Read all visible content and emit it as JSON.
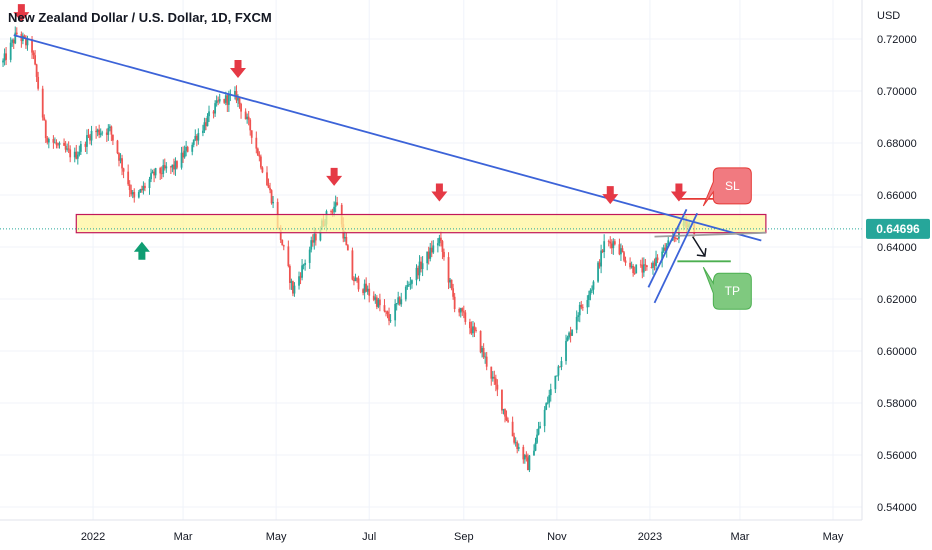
{
  "chart_data": {
    "type": "candlestick",
    "title": "New Zealand Dollar / U.S. Dollar, 1D, FXCM",
    "currency": "USD",
    "ylim": [
      0.535,
      0.735
    ],
    "y_ticks": [
      "0.72000",
      "0.70000",
      "0.68000",
      "0.66000",
      "0.64000",
      "0.62000",
      "0.60000",
      "0.58000",
      "0.56000",
      "0.54000"
    ],
    "x_ticks": [
      "2022",
      "Mar",
      "May",
      "Jul",
      "Sep",
      "Nov",
      "2023",
      "Mar",
      "May"
    ],
    "x_tick_dates": [
      "2022-01-01",
      "2022-03-01",
      "2022-05-01",
      "2022-07-01",
      "2022-09-01",
      "2022-11-01",
      "2023-01-01",
      "2023-03-01",
      "2023-05-01"
    ],
    "x_range": [
      "2021-11-01",
      "2023-05-20"
    ],
    "last_price": "0.64696",
    "last_price_value": 0.64696,
    "price_path": [
      [
        "2021-11-03",
        0.711
      ],
      [
        "2021-11-12",
        0.722
      ],
      [
        "2021-11-22",
        0.716
      ],
      [
        "2021-12-01",
        0.683
      ],
      [
        "2021-12-10",
        0.678
      ],
      [
        "2021-12-20",
        0.675
      ],
      [
        "2021-12-31",
        0.684
      ],
      [
        "2022-01-12",
        0.685
      ],
      [
        "2022-01-28",
        0.658
      ],
      [
        "2022-02-10",
        0.668
      ],
      [
        "2022-02-24",
        0.671
      ],
      [
        "2022-03-10",
        0.683
      ],
      [
        "2022-03-25",
        0.696
      ],
      [
        "2022-04-05",
        0.698
      ],
      [
        "2022-04-15",
        0.684
      ],
      [
        "2022-04-28",
        0.659
      ],
      [
        "2022-05-12",
        0.623
      ],
      [
        "2022-05-25",
        0.642
      ],
      [
        "2022-06-03",
        0.652
      ],
      [
        "2022-06-10",
        0.657
      ],
      [
        "2022-06-20",
        0.628
      ],
      [
        "2022-07-05",
        0.62
      ],
      [
        "2022-07-14",
        0.612
      ],
      [
        "2022-07-29",
        0.628
      ],
      [
        "2022-08-10",
        0.638
      ],
      [
        "2022-08-16",
        0.643
      ],
      [
        "2022-08-26",
        0.618
      ],
      [
        "2022-09-09",
        0.606
      ],
      [
        "2022-09-22",
        0.586
      ],
      [
        "2022-10-04",
        0.566
      ],
      [
        "2022-10-13",
        0.556
      ],
      [
        "2022-10-24",
        0.577
      ],
      [
        "2022-11-04",
        0.598
      ],
      [
        "2022-11-14",
        0.614
      ],
      [
        "2022-11-25",
        0.626
      ],
      [
        "2022-12-02",
        0.641
      ],
      [
        "2022-12-09",
        0.642
      ],
      [
        "2022-12-20",
        0.632
      ],
      [
        "2022-12-30",
        0.631
      ],
      [
        "2023-01-08",
        0.637
      ],
      [
        "2023-01-18",
        0.644
      ],
      [
        "2023-01-24",
        0.65
      ],
      [
        "2023-01-30",
        0.647
      ]
    ],
    "zones": [
      {
        "name": "resistance-zone",
        "start": "2021-12-21",
        "end": "2023-03-18",
        "low": 0.6455,
        "high": 0.6525,
        "fill": "#fff59d",
        "stroke": "#c2185b"
      }
    ],
    "lines": [
      {
        "name": "descending-trendline",
        "from": [
          "2021-11-10",
          0.7215
        ],
        "to": [
          "2023-03-15",
          0.6425
        ],
        "color": "#3c63d8"
      },
      {
        "name": "horizontal-ray",
        "from": [
          "2023-01-04",
          0.644
        ],
        "to": [
          "2023-03-18",
          0.6455
        ],
        "color": "#9e9e9e"
      },
      {
        "name": "sl-line",
        "from": [
          "2023-01-19",
          0.6585
        ],
        "to": [
          "2023-02-26",
          0.6585
        ],
        "color": "#e53935"
      },
      {
        "name": "tp-line",
        "from": [
          "2023-01-19",
          0.6345
        ],
        "to": [
          "2023-02-23",
          0.6345
        ],
        "color": "#4caf50"
      },
      {
        "name": "channel-left",
        "from": [
          "2022-12-31",
          0.6245
        ],
        "to": [
          "2023-01-25",
          0.6545
        ],
        "color": "#3c63d8"
      },
      {
        "name": "channel-right",
        "from": [
          "2023-01-04",
          0.6185
        ],
        "to": [
          "2023-02-01",
          0.653
        ],
        "color": "#3c63d8"
      }
    ],
    "down_arrows": [
      [
        "2021-11-15",
        0.7265
      ],
      [
        "2022-04-06",
        0.705
      ],
      [
        "2022-06-08",
        0.6635
      ],
      [
        "2022-08-16",
        0.6575
      ],
      [
        "2022-12-06",
        0.6565
      ],
      [
        "2023-01-20",
        0.6575
      ]
    ],
    "up_arrows": [
      [
        "2022-02-02",
        0.642
      ]
    ],
    "projection_arrow": {
      "from": [
        "2023-01-29",
        0.644
      ],
      "to": [
        "2023-02-06",
        0.6365
      ],
      "color": "#131722"
    },
    "callouts": [
      {
        "label": "SL",
        "date": "2023-02-24",
        "price": 0.6635,
        "fill": "#f17a80",
        "stroke": "#e53935"
      },
      {
        "label": "TP",
        "date": "2023-02-24",
        "price": 0.623,
        "fill": "#7fc97f",
        "stroke": "#4caf50"
      }
    ],
    "colors": {
      "up": "#26a69a",
      "down": "#ef5350",
      "marker": "#e53945",
      "up_marker": "#0f9d72",
      "grid": "#f0f3fa",
      "price_label": "#26a69a"
    },
    "grid": true
  }
}
